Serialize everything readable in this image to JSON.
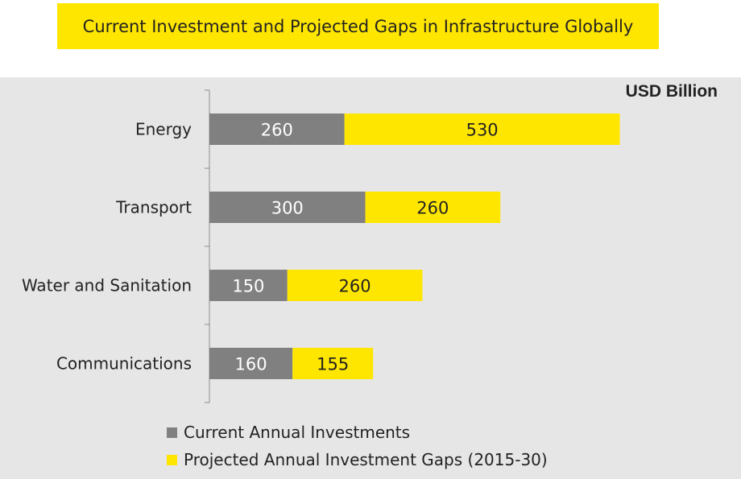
{
  "title": "Current Investment and Projected Gaps in Infrastructure Globally",
  "units_label": "USD Billion",
  "colors": {
    "current": "#808080",
    "projected": "#ffe600",
    "title_bg": "#ffe600",
    "panel_bg": "#e6e6e6"
  },
  "legend": [
    {
      "name": "Current Annual Investments",
      "color": "#808080"
    },
    {
      "name": "Projected Annual Investment Gaps (2015-30)",
      "color": "#ffe600"
    }
  ],
  "chart_data": {
    "type": "bar",
    "orientation": "horizontal",
    "stacked": true,
    "title": "Current Investment and Projected Gaps in Infrastructure Globally",
    "categories": [
      "Energy",
      "Transport",
      "Water and Sanitation",
      "Communications"
    ],
    "series": [
      {
        "name": "Current Annual Investments",
        "values": [
          260,
          300,
          150,
          160
        ],
        "color": "#808080"
      },
      {
        "name": "Projected Annual Investment Gaps (2015-30)",
        "values": [
          530,
          260,
          260,
          155
        ],
        "color": "#ffe600"
      }
    ],
    "xlabel": "",
    "ylabel": "",
    "units": "USD Billion",
    "xlim": [
      0,
      1000
    ],
    "grid": false,
    "legend_position": "bottom"
  }
}
